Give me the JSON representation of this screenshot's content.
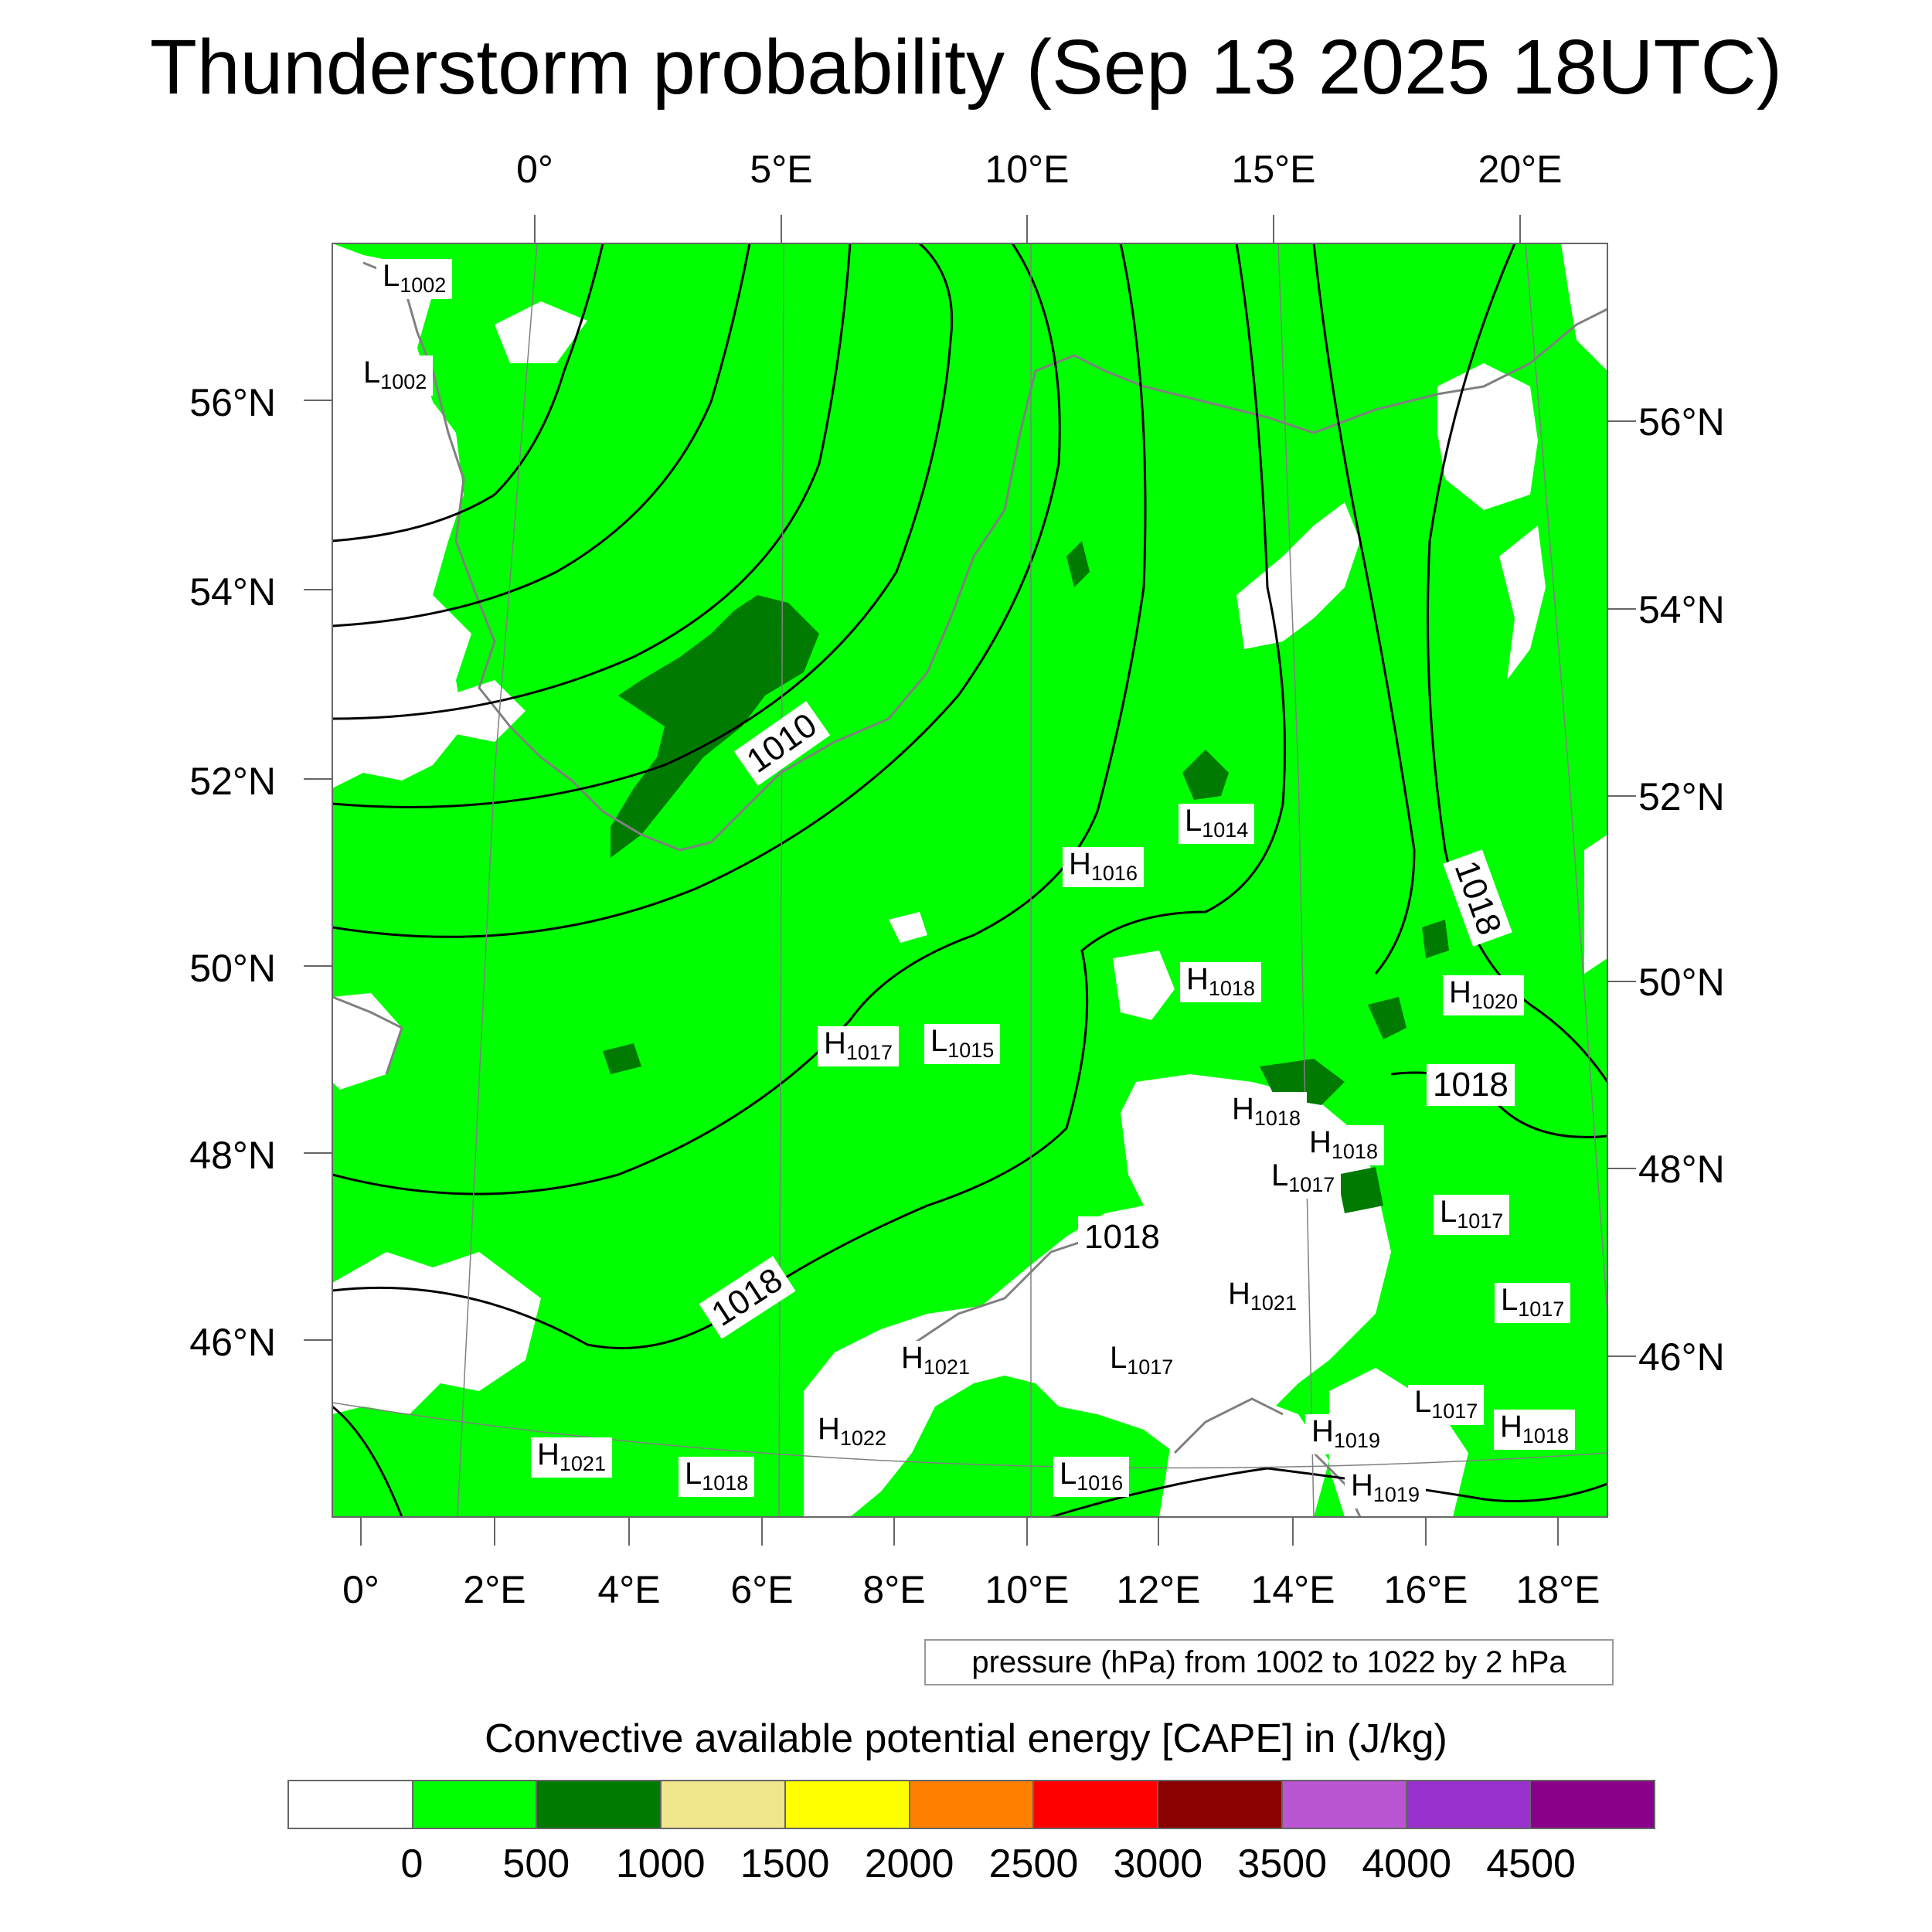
{
  "title": "Thunderstorm probability (Sep 13 2025 18UTC)",
  "map": {
    "top_lon_labels": [
      "0°",
      "5°E",
      "10°E",
      "15°E",
      "20°E"
    ],
    "bottom_lon_labels": [
      "0°",
      "2°E",
      "4°E",
      "6°E",
      "8°E",
      "10°E",
      "12°E",
      "14°E",
      "16°E",
      "18°E"
    ],
    "left_lat_labels": [
      "56°N",
      "54°N",
      "52°N",
      "50°N",
      "48°N",
      "46°N"
    ],
    "right_lat_labels": [
      "56°N",
      "54°N",
      "52°N",
      "50°N",
      "48°N",
      "46°N"
    ],
    "pressure_centers": [
      {
        "type": "L",
        "value": "1002"
      },
      {
        "type": "L",
        "value": "1002"
      },
      {
        "type": "L",
        "value": "1014"
      },
      {
        "type": "H",
        "value": "1016"
      },
      {
        "type": "H",
        "value": "1018"
      },
      {
        "type": "H",
        "value": "1020"
      },
      {
        "type": "H",
        "value": "1017"
      },
      {
        "type": "L",
        "value": "1015"
      },
      {
        "type": "H",
        "value": "1018"
      },
      {
        "type": "H",
        "value": "1018"
      },
      {
        "type": "L",
        "value": "1017"
      },
      {
        "type": "L",
        "value": "1017"
      },
      {
        "type": "H",
        "value": "1021"
      },
      {
        "type": "L",
        "value": "1017"
      },
      {
        "type": "H",
        "value": "1021"
      },
      {
        "type": "L",
        "value": "1017"
      },
      {
        "type": "H",
        "value": "1022"
      },
      {
        "type": "L",
        "value": "1017"
      },
      {
        "type": "H",
        "value": "1018"
      },
      {
        "type": "H",
        "value": "1019"
      },
      {
        "type": "H",
        "value": "1021"
      },
      {
        "type": "L",
        "value": "1018"
      },
      {
        "type": "L",
        "value": "1016"
      },
      {
        "type": "H",
        "value": "1019"
      }
    ],
    "contour_labels": [
      "1010",
      "1018",
      "1018",
      "1018",
      "1018"
    ],
    "colors": {
      "cape_0_500": "#00ff00",
      "cape_500_1000": "#007a00",
      "contour": "#000000",
      "coastline": "#808080"
    }
  },
  "info_box": "pressure (hPa) from 1002 to 1022 by 2 hPa",
  "colorbar": {
    "title": "Convective available potential energy [CAPE] in (J/kg)",
    "tick_labels": [
      "0",
      "500",
      "1000",
      "1500",
      "2000",
      "2500",
      "3000",
      "3500",
      "4000",
      "4500"
    ],
    "colors": [
      "#ffffff",
      "#00ff00",
      "#007a00",
      "#f0e68c",
      "#ffff00",
      "#ff8000",
      "#ff0000",
      "#8b0000",
      "#ba55d3",
      "#9932cc",
      "#8b008b"
    ]
  }
}
